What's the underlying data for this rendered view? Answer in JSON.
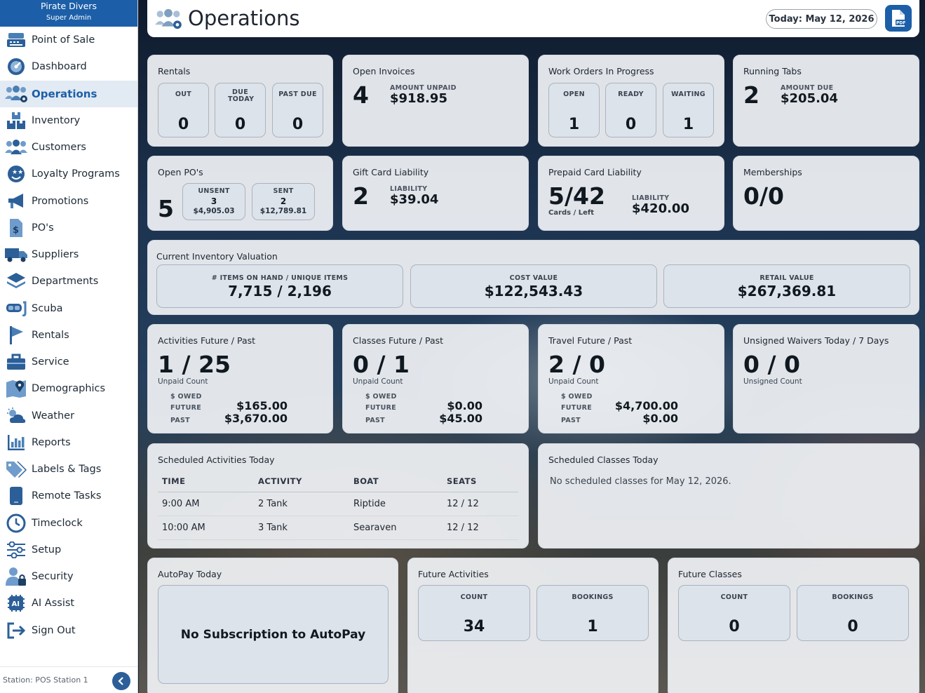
{
  "brand": {
    "name": "Pirate Divers",
    "role": "Super Admin"
  },
  "nav": [
    {
      "label": "Point of Sale",
      "icon": "register-icon"
    },
    {
      "label": "Dashboard",
      "icon": "dashboard-icon"
    },
    {
      "label": "Operations",
      "icon": "operations-icon",
      "active": true
    },
    {
      "label": "Inventory",
      "icon": "inventory-icon"
    },
    {
      "label": "Customers",
      "icon": "customers-icon"
    },
    {
      "label": "Loyalty Programs",
      "icon": "loyalty-icon"
    },
    {
      "label": "Promotions",
      "icon": "megaphone-icon"
    },
    {
      "label": "PO's",
      "icon": "purchase-order-icon"
    },
    {
      "label": "Suppliers",
      "icon": "truck-icon"
    },
    {
      "label": "Departments",
      "icon": "layers-icon"
    },
    {
      "label": "Scuba",
      "icon": "dive-mask-icon"
    },
    {
      "label": "Rentals",
      "icon": "flag-icon"
    },
    {
      "label": "Service",
      "icon": "toolbox-icon"
    },
    {
      "label": "Demographics",
      "icon": "map-pin-icon"
    },
    {
      "label": "Weather",
      "icon": "weather-icon"
    },
    {
      "label": "Reports",
      "icon": "bar-chart-icon"
    },
    {
      "label": "Labels & Tags",
      "icon": "tags-icon"
    },
    {
      "label": "Remote Tasks",
      "icon": "tablet-icon"
    },
    {
      "label": "Timeclock",
      "icon": "clock-icon"
    },
    {
      "label": "Setup",
      "icon": "sliders-icon"
    },
    {
      "label": "Security",
      "icon": "user-lock-icon"
    },
    {
      "label": "AI Assist",
      "icon": "ai-icon"
    },
    {
      "label": "Sign Out",
      "icon": "sign-out-icon"
    }
  ],
  "station": "Station: POS Station 1",
  "header": {
    "title": "Operations",
    "date": "Today: May 12, 2026"
  },
  "rentals": {
    "title": "Rentals",
    "out_label": "OUT",
    "out": "0",
    "due_label": "DUE TODAY",
    "due": "0",
    "past_label": "PAST DUE",
    "past": "0"
  },
  "open_invoices": {
    "title": "Open Invoices",
    "count": "4",
    "label": "AMOUNT UNPAID",
    "amount": "$918.95"
  },
  "work_orders": {
    "title": "Work Orders In Progress",
    "open_label": "OPEN",
    "open": "1",
    "ready_label": "READY",
    "ready": "0",
    "waiting_label": "WAITING",
    "waiting": "1"
  },
  "running_tabs": {
    "title": "Running Tabs",
    "count": "2",
    "label": "AMOUNT DUE",
    "amount": "$205.04"
  },
  "open_pos": {
    "title": "Open PO's",
    "count": "5",
    "unsent_label": "UNSENT",
    "unsent_count": "3",
    "unsent_amount": "$4,905.03",
    "sent_label": "SENT",
    "sent_count": "2",
    "sent_amount": "$12,789.81"
  },
  "gift_card": {
    "title": "Gift Card Liability",
    "count": "2",
    "label": "LIABILITY",
    "amount": "$39.04"
  },
  "prepaid_card": {
    "title": "Prepaid Card Liability",
    "value": "5/42",
    "sub": "Cards / Left",
    "label": "LIABILITY",
    "amount": "$420.00"
  },
  "memberships": {
    "title": "Memberships",
    "value": "0/0"
  },
  "valuation": {
    "title": "Current Inventory Valuation",
    "items_label": "# ITEMS ON HAND / UNIQUE ITEMS",
    "items": "7,715 / 2,196",
    "cost_label": "COST VALUE",
    "cost": "$122,543.43",
    "retail_label": "RETAIL VALUE",
    "retail": "$267,369.81"
  },
  "activities": {
    "title": "Activities Future / Past",
    "value": "1 / 25",
    "sub": "Unpaid Count",
    "owed_label": "$ OWED",
    "future_label": "FUTURE",
    "future": "$165.00",
    "past_label": "PAST",
    "past": "$3,670.00"
  },
  "classes": {
    "title": "Classes Future / Past",
    "value": "0 / 1",
    "sub": "Unpaid Count",
    "owed_label": "$ OWED",
    "future_label": "FUTURE",
    "future": "$0.00",
    "past_label": "PAST",
    "past": "$45.00"
  },
  "travel": {
    "title": "Travel Future / Past",
    "value": "2 / 0",
    "sub": "Unpaid Count",
    "owed_label": "$ OWED",
    "future_label": "FUTURE",
    "future": "$4,700.00",
    "past_label": "PAST",
    "past": "$0.00"
  },
  "waivers": {
    "title": "Unsigned Waivers Today / 7 Days",
    "value": "0 / 0",
    "sub": "Unsigned Count"
  },
  "sched_activities": {
    "title": "Scheduled Activities Today",
    "columns": [
      "TIME",
      "ACTIVITY",
      "BOAT",
      "SEATS"
    ],
    "rows": [
      [
        "9:00 AM",
        "2 Tank",
        "Riptide",
        "12 / 12"
      ],
      [
        "10:00 AM",
        "3 Tank",
        "Searaven",
        "12 / 12"
      ]
    ]
  },
  "sched_classes": {
    "title": "Scheduled Classes Today",
    "empty": "No scheduled classes for May 12, 2026."
  },
  "autopay": {
    "title": "AutoPay Today",
    "message": "No Subscription to AutoPay"
  },
  "future_activities": {
    "title": "Future Activities",
    "count_label": "COUNT",
    "count": "34",
    "bookings_label": "BOOKINGS",
    "bookings": "1"
  },
  "future_classes": {
    "title": "Future Classes",
    "count_label": "COUNT",
    "count": "0",
    "bookings_label": "BOOKINGS",
    "bookings": "0"
  },
  "colors": {
    "accent": "#1c5fa8",
    "active_bg": "#e2eaf3",
    "card_bg": "#f0f2f5"
  }
}
